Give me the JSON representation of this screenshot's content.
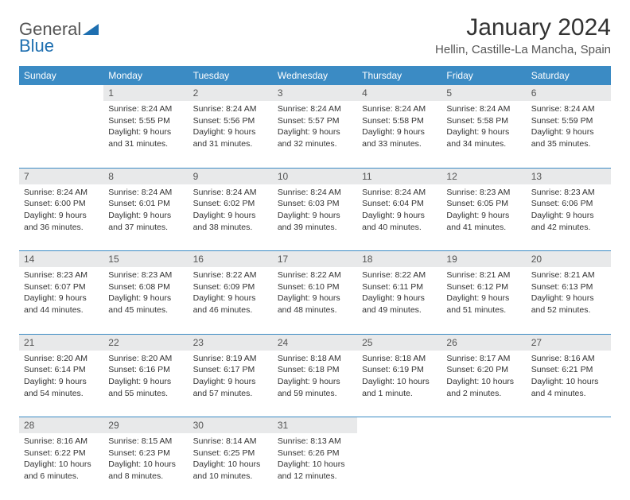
{
  "brand": {
    "word1": "General",
    "word2": "Blue"
  },
  "title": "January 2024",
  "location": "Hellin, Castille-La Mancha, Spain",
  "colors": {
    "header_bg": "#3b8bc4",
    "header_text": "#ffffff",
    "daynum_bg": "#e8e9ea",
    "daynum_text": "#555555",
    "body_text": "#333333",
    "rule": "#3b8bc4",
    "logo_gray": "#6b6b6b",
    "logo_blue": "#1e6fb0"
  },
  "weekdays": [
    "Sunday",
    "Monday",
    "Tuesday",
    "Wednesday",
    "Thursday",
    "Friday",
    "Saturday"
  ],
  "weeks": [
    [
      {
        "n": "",
        "sr": "",
        "ss": "",
        "dl": ""
      },
      {
        "n": "1",
        "sr": "Sunrise: 8:24 AM",
        "ss": "Sunset: 5:55 PM",
        "dl": "Daylight: 9 hours and 31 minutes."
      },
      {
        "n": "2",
        "sr": "Sunrise: 8:24 AM",
        "ss": "Sunset: 5:56 PM",
        "dl": "Daylight: 9 hours and 31 minutes."
      },
      {
        "n": "3",
        "sr": "Sunrise: 8:24 AM",
        "ss": "Sunset: 5:57 PM",
        "dl": "Daylight: 9 hours and 32 minutes."
      },
      {
        "n": "4",
        "sr": "Sunrise: 8:24 AM",
        "ss": "Sunset: 5:58 PM",
        "dl": "Daylight: 9 hours and 33 minutes."
      },
      {
        "n": "5",
        "sr": "Sunrise: 8:24 AM",
        "ss": "Sunset: 5:58 PM",
        "dl": "Daylight: 9 hours and 34 minutes."
      },
      {
        "n": "6",
        "sr": "Sunrise: 8:24 AM",
        "ss": "Sunset: 5:59 PM",
        "dl": "Daylight: 9 hours and 35 minutes."
      }
    ],
    [
      {
        "n": "7",
        "sr": "Sunrise: 8:24 AM",
        "ss": "Sunset: 6:00 PM",
        "dl": "Daylight: 9 hours and 36 minutes."
      },
      {
        "n": "8",
        "sr": "Sunrise: 8:24 AM",
        "ss": "Sunset: 6:01 PM",
        "dl": "Daylight: 9 hours and 37 minutes."
      },
      {
        "n": "9",
        "sr": "Sunrise: 8:24 AM",
        "ss": "Sunset: 6:02 PM",
        "dl": "Daylight: 9 hours and 38 minutes."
      },
      {
        "n": "10",
        "sr": "Sunrise: 8:24 AM",
        "ss": "Sunset: 6:03 PM",
        "dl": "Daylight: 9 hours and 39 minutes."
      },
      {
        "n": "11",
        "sr": "Sunrise: 8:24 AM",
        "ss": "Sunset: 6:04 PM",
        "dl": "Daylight: 9 hours and 40 minutes."
      },
      {
        "n": "12",
        "sr": "Sunrise: 8:23 AM",
        "ss": "Sunset: 6:05 PM",
        "dl": "Daylight: 9 hours and 41 minutes."
      },
      {
        "n": "13",
        "sr": "Sunrise: 8:23 AM",
        "ss": "Sunset: 6:06 PM",
        "dl": "Daylight: 9 hours and 42 minutes."
      }
    ],
    [
      {
        "n": "14",
        "sr": "Sunrise: 8:23 AM",
        "ss": "Sunset: 6:07 PM",
        "dl": "Daylight: 9 hours and 44 minutes."
      },
      {
        "n": "15",
        "sr": "Sunrise: 8:23 AM",
        "ss": "Sunset: 6:08 PM",
        "dl": "Daylight: 9 hours and 45 minutes."
      },
      {
        "n": "16",
        "sr": "Sunrise: 8:22 AM",
        "ss": "Sunset: 6:09 PM",
        "dl": "Daylight: 9 hours and 46 minutes."
      },
      {
        "n": "17",
        "sr": "Sunrise: 8:22 AM",
        "ss": "Sunset: 6:10 PM",
        "dl": "Daylight: 9 hours and 48 minutes."
      },
      {
        "n": "18",
        "sr": "Sunrise: 8:22 AM",
        "ss": "Sunset: 6:11 PM",
        "dl": "Daylight: 9 hours and 49 minutes."
      },
      {
        "n": "19",
        "sr": "Sunrise: 8:21 AM",
        "ss": "Sunset: 6:12 PM",
        "dl": "Daylight: 9 hours and 51 minutes."
      },
      {
        "n": "20",
        "sr": "Sunrise: 8:21 AM",
        "ss": "Sunset: 6:13 PM",
        "dl": "Daylight: 9 hours and 52 minutes."
      }
    ],
    [
      {
        "n": "21",
        "sr": "Sunrise: 8:20 AM",
        "ss": "Sunset: 6:14 PM",
        "dl": "Daylight: 9 hours and 54 minutes."
      },
      {
        "n": "22",
        "sr": "Sunrise: 8:20 AM",
        "ss": "Sunset: 6:16 PM",
        "dl": "Daylight: 9 hours and 55 minutes."
      },
      {
        "n": "23",
        "sr": "Sunrise: 8:19 AM",
        "ss": "Sunset: 6:17 PM",
        "dl": "Daylight: 9 hours and 57 minutes."
      },
      {
        "n": "24",
        "sr": "Sunrise: 8:18 AM",
        "ss": "Sunset: 6:18 PM",
        "dl": "Daylight: 9 hours and 59 minutes."
      },
      {
        "n": "25",
        "sr": "Sunrise: 8:18 AM",
        "ss": "Sunset: 6:19 PM",
        "dl": "Daylight: 10 hours and 1 minute."
      },
      {
        "n": "26",
        "sr": "Sunrise: 8:17 AM",
        "ss": "Sunset: 6:20 PM",
        "dl": "Daylight: 10 hours and 2 minutes."
      },
      {
        "n": "27",
        "sr": "Sunrise: 8:16 AM",
        "ss": "Sunset: 6:21 PM",
        "dl": "Daylight: 10 hours and 4 minutes."
      }
    ],
    [
      {
        "n": "28",
        "sr": "Sunrise: 8:16 AM",
        "ss": "Sunset: 6:22 PM",
        "dl": "Daylight: 10 hours and 6 minutes."
      },
      {
        "n": "29",
        "sr": "Sunrise: 8:15 AM",
        "ss": "Sunset: 6:23 PM",
        "dl": "Daylight: 10 hours and 8 minutes."
      },
      {
        "n": "30",
        "sr": "Sunrise: 8:14 AM",
        "ss": "Sunset: 6:25 PM",
        "dl": "Daylight: 10 hours and 10 minutes."
      },
      {
        "n": "31",
        "sr": "Sunrise: 8:13 AM",
        "ss": "Sunset: 6:26 PM",
        "dl": "Daylight: 10 hours and 12 minutes."
      },
      {
        "n": "",
        "sr": "",
        "ss": "",
        "dl": ""
      },
      {
        "n": "",
        "sr": "",
        "ss": "",
        "dl": ""
      },
      {
        "n": "",
        "sr": "",
        "ss": "",
        "dl": ""
      }
    ]
  ]
}
